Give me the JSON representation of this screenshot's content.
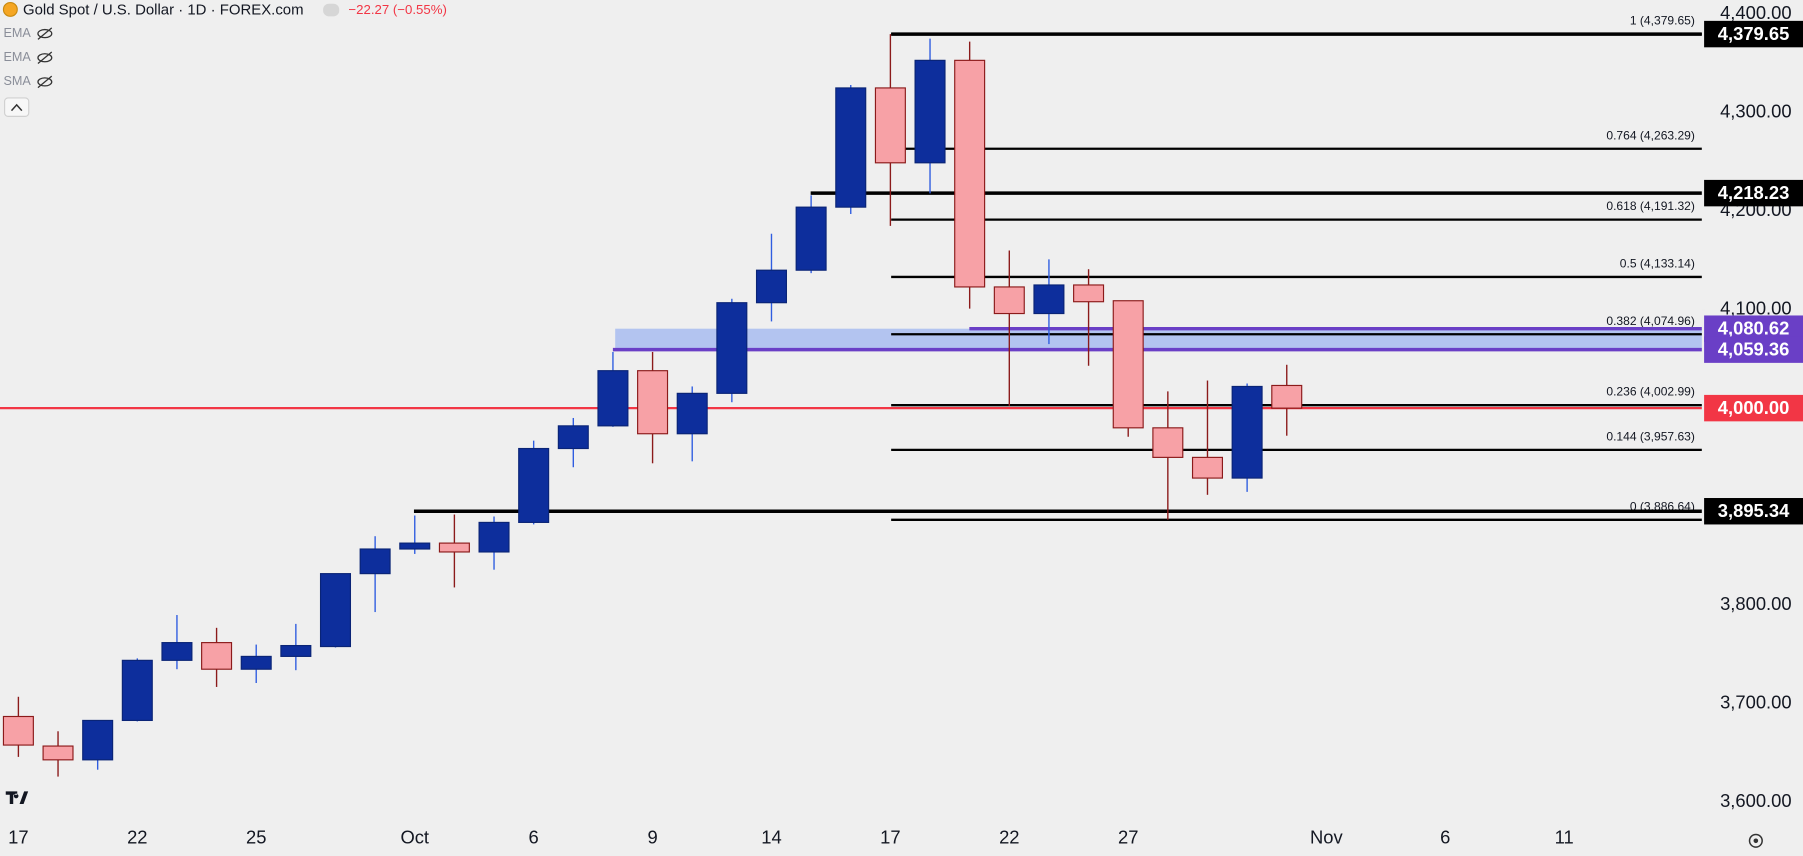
{
  "chart_data": {
    "type": "candlestick",
    "title": "Gold Spot / U.S. Dollar · 1D · FOREX.com",
    "change_label": "−22.27 (−0.55%)",
    "indicators": [
      "EMA",
      "EMA",
      "SMA"
    ],
    "categories": [
      "17",
      null,
      null,
      "22",
      null,
      null,
      "25",
      null,
      null,
      null,
      "Oct",
      null,
      null,
      "6",
      null,
      null,
      "9",
      null,
      null,
      "14",
      null,
      null,
      "17",
      null,
      null,
      "22",
      null,
      null,
      "27",
      null,
      null,
      null,
      null,
      "Nov",
      null,
      null,
      "6",
      null,
      null,
      "11"
    ],
    "open": [
      3687,
      3657,
      3643,
      3683,
      3744,
      3762,
      3735,
      3748,
      3758,
      3832,
      3857,
      3863,
      3854,
      3884,
      3959,
      3982,
      4038,
      3974,
      4015,
      4107,
      4140,
      4204,
      4325,
      4249,
      4353,
      4123,
      4096,
      4125,
      4109,
      3980,
      3950,
      3929,
      4023,
      null,
      null,
      null,
      null,
      null,
      null,
      null
    ],
    "high": [
      3707,
      3672,
      3683,
      3746,
      3790,
      3777,
      3760,
      3781,
      3832,
      3870,
      3891,
      3892,
      3890,
      3967,
      3990,
      4057,
      4057,
      4022,
      4111,
      4177,
      4216,
      4328,
      4379.65,
      4375,
      4372,
      4160,
      4151,
      4141,
      4109,
      4017,
      4028,
      4025,
      4044,
      null,
      null,
      null,
      null,
      null,
      null,
      null
    ],
    "low": [
      3646,
      3626,
      3633,
      3682,
      3735,
      3717,
      3721,
      3734,
      3757,
      3793,
      3852,
      3818,
      3836,
      3882,
      3940,
      3981,
      3944,
      3946,
      4006,
      4088,
      4137,
      4197,
      4185,
      4218,
      4101,
      4002,
      4065,
      4043,
      3971,
      3886.64,
      3912,
      3915,
      3972,
      null,
      null,
      null,
      null,
      null,
      null,
      null
    ],
    "close": [
      3658,
      3643,
      3683,
      3744,
      3762,
      3735,
      3748,
      3759,
      3832,
      3857,
      3863,
      3854,
      3884,
      3959,
      3982,
      4038,
      3974,
      4015,
      4107,
      4140,
      4204,
      4325,
      4249,
      4353,
      4123,
      4096,
      4125,
      4108,
      3980,
      3950,
      3929,
      4022,
      4000,
      null,
      null,
      null,
      null,
      null,
      null,
      null
    ],
    "up_color": "#0d2e9c",
    "down_color": "#f7a1a6",
    "ylim": [
      3583,
      4414
    ],
    "yticks": [
      {
        "value": 3600,
        "label": "3,600.00"
      },
      {
        "value": 3700,
        "label": "3,700.00"
      },
      {
        "value": 3800,
        "label": "3,800.00"
      },
      {
        "value": 4100,
        "label": "4,100.00"
      },
      {
        "value": 4200,
        "label": "4,200.00"
      },
      {
        "value": 4300,
        "label": "4,300.00"
      },
      {
        "value": 4400,
        "label": "4,400.00"
      }
    ],
    "grid": false,
    "fib_levels": [
      {
        "value": 4379.65,
        "label": "1 (4,379.65)"
      },
      {
        "value": 4263.29,
        "label": "0.764 (4,263.29)"
      },
      {
        "value": 4191.32,
        "label": "0.618 (4,191.32)"
      },
      {
        "value": 4133.14,
        "label": "0.5 (4,133.14)"
      },
      {
        "value": 4074.96,
        "label": "0.382 (4,074.96)"
      },
      {
        "value": 4002.99,
        "label": "0.236 (4,002.99)"
      },
      {
        "value": 3957.63,
        "label": "0.144 (3,957.63)"
      },
      {
        "value": 3886.64,
        "label": "0 (3,886.64)"
      }
    ],
    "price_lines": [
      {
        "value": 4379.65,
        "label": "4,379.65",
        "color": "#000000"
      },
      {
        "value": 4218.23,
        "label": "4,218.23",
        "color": "#000000"
      },
      {
        "value": 4080.62,
        "label": "4,080.62",
        "color": "#6a3fc6"
      },
      {
        "value": 4059.36,
        "label": "4,059.36",
        "color": "#6a3fc6"
      },
      {
        "value": 4000.0,
        "label": "4,000.00",
        "color": "#f23645"
      },
      {
        "value": 3895.34,
        "label": "3,895.34",
        "color": "#000000"
      }
    ]
  }
}
